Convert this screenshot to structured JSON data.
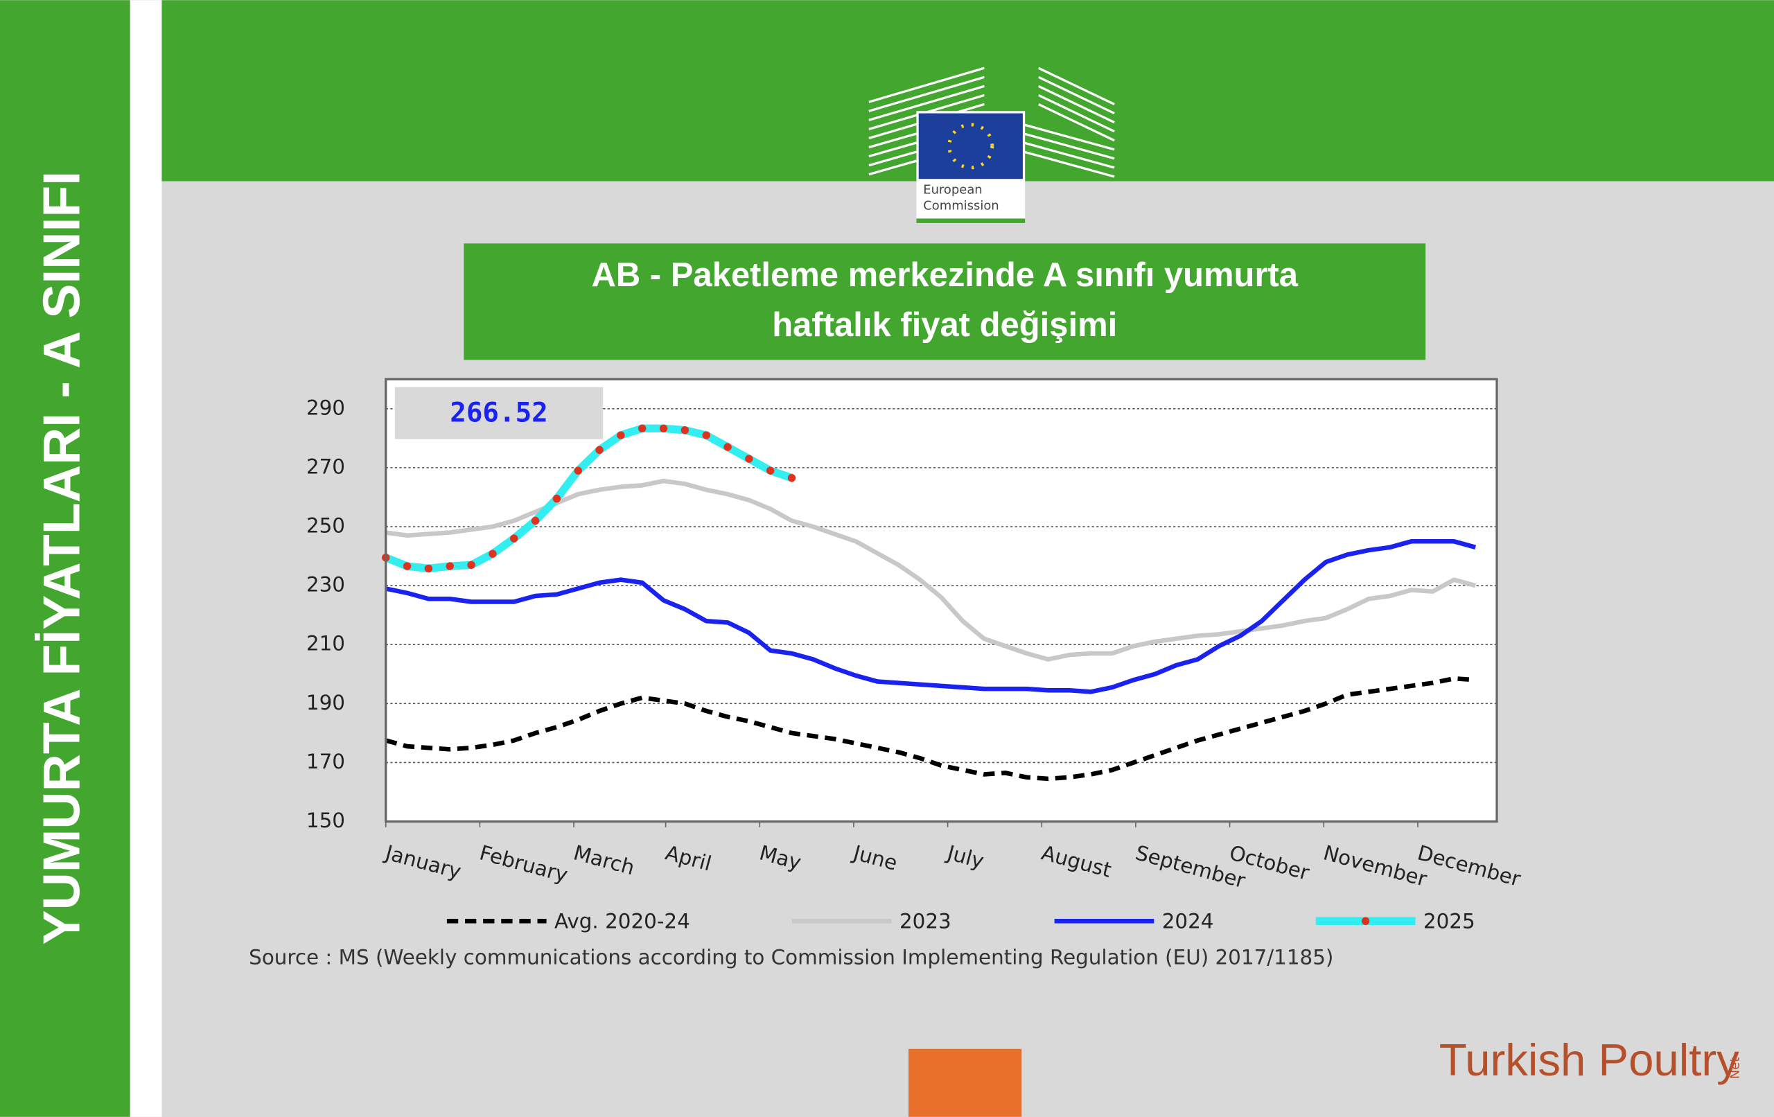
{
  "page": {
    "side_title": "YUMURTA FİYATLARI - A SINIFI",
    "logo_lines": [
      "European",
      "Commission"
    ],
    "brand": "Turkish Poultry",
    "brand_suffix": "Net"
  },
  "chart_data": {
    "type": "line",
    "title_lines": [
      "AB - Paketleme merkezinde A sınıfı yumurta",
      "haftalık fiyat değişimi"
    ],
    "source": "Source : MS (Weekly communications according to Commission Implementing Regulation (EU) 2017/1185)",
    "annotation": "266.52",
    "x": [
      1,
      2,
      3,
      4,
      5,
      6,
      7,
      8,
      9,
      10,
      11,
      12,
      13,
      14,
      15,
      16,
      17,
      18,
      19,
      20,
      21,
      22,
      23,
      24,
      25,
      26,
      27,
      28,
      29,
      30,
      31,
      32,
      33,
      34,
      35,
      36,
      37,
      38,
      39,
      40,
      41,
      42,
      43,
      44,
      45,
      46,
      47,
      48,
      49,
      50,
      51,
      52
    ],
    "xlim": [
      1,
      53
    ],
    "xticks": [
      {
        "value": 1,
        "label": "January"
      },
      {
        "value": 5.4,
        "label": "February"
      },
      {
        "value": 9.8,
        "label": "March"
      },
      {
        "value": 14.1,
        "label": "April"
      },
      {
        "value": 18.5,
        "label": "May"
      },
      {
        "value": 22.9,
        "label": "June"
      },
      {
        "value": 27.3,
        "label": "July"
      },
      {
        "value": 31.7,
        "label": "August"
      },
      {
        "value": 36.1,
        "label": "September"
      },
      {
        "value": 40.5,
        "label": "October"
      },
      {
        "value": 44.9,
        "label": "November"
      },
      {
        "value": 49.3,
        "label": "December"
      }
    ],
    "ylim": [
      150,
      300
    ],
    "yticks": [
      150,
      170,
      190,
      210,
      230,
      250,
      270,
      290
    ],
    "grid": true,
    "series": [
      {
        "name": "Avg. 2020-24",
        "color": "#000000",
        "line_style": "dashed",
        "values": [
          177.5,
          175.5,
          175,
          174.5,
          175,
          176,
          177.5,
          180,
          182,
          184.5,
          187.5,
          190,
          192,
          191,
          190,
          187.5,
          185.5,
          184,
          182,
          180,
          179,
          178,
          176.5,
          175,
          173.5,
          171.5,
          169,
          167.5,
          166,
          166.5,
          165,
          164.5,
          165,
          166,
          167.5,
          170,
          172.5,
          175,
          177.5,
          179.5,
          181.5,
          183.5,
          185.5,
          187.5,
          190,
          193,
          194,
          195,
          196,
          197,
          198.5,
          198
        ]
      },
      {
        "name": "2023",
        "color": "#c8c8c8",
        "line_style": "solid",
        "values": [
          248,
          247,
          247.5,
          248,
          249,
          250,
          252,
          255,
          258,
          261,
          262.5,
          263.5,
          264,
          265.5,
          264.5,
          262.5,
          261,
          259,
          256,
          252,
          250,
          247.5,
          245,
          241,
          237,
          232,
          226,
          218,
          212,
          209.5,
          207,
          205,
          206.5,
          207,
          207,
          209.5,
          211,
          212,
          213,
          213.5,
          214.5,
          215.5,
          216.5,
          218,
          219,
          222,
          225.5,
          226.5,
          228.5,
          228,
          232,
          230
        ]
      },
      {
        "name": "2024",
        "color": "#1a22f0",
        "line_style": "solid",
        "values": [
          229,
          227.5,
          225.5,
          225.5,
          224.5,
          224.5,
          224.5,
          226.5,
          227,
          229,
          231,
          232,
          231,
          225,
          222,
          218,
          217.5,
          214,
          208,
          207,
          205,
          202,
          199.5,
          197.5,
          197,
          196.5,
          196,
          195.5,
          195,
          195,
          195,
          194.5,
          194.5,
          194,
          195.5,
          198,
          200,
          203,
          205,
          209.5,
          213,
          218,
          225,
          232,
          238,
          240.5,
          242,
          243,
          245,
          245,
          245,
          243
        ]
      },
      {
        "name": "2025",
        "color": "#33eef0",
        "line_style": "solid",
        "marker": "dot",
        "marker_color": "#e0301e",
        "values": [
          239.5,
          236.6,
          235.8,
          236.6,
          237,
          240.8,
          246,
          252,
          259.5,
          269,
          276,
          281,
          283.3,
          283.3,
          282.7,
          281,
          277,
          273,
          269,
          266.52,
          null,
          null,
          null,
          null,
          null,
          null,
          null,
          null,
          null,
          null,
          null,
          null,
          null,
          null,
          null,
          null,
          null,
          null,
          null,
          null,
          null,
          null,
          null,
          null,
          null,
          null,
          null,
          null,
          null,
          null,
          null,
          null
        ]
      }
    ]
  }
}
